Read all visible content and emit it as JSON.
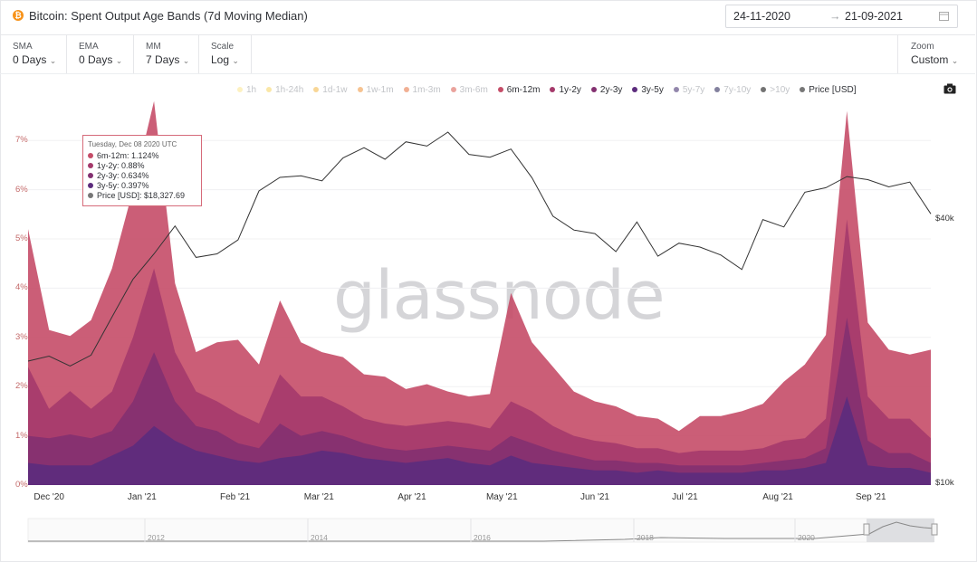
{
  "header": {
    "title": "Bitcoin: Spent Output Age Bands (7d Moving Median)",
    "coin_symbol": "₿",
    "date_from": "24-11-2020",
    "date_to": "21-09-2021",
    "arrow": "→"
  },
  "controls": [
    {
      "label": "SMA",
      "value": "0 Days"
    },
    {
      "label": "EMA",
      "value": "0 Days"
    },
    {
      "label": "MM",
      "value": "7 Days"
    },
    {
      "label": "Scale",
      "value": "Log"
    }
  ],
  "zoom": {
    "label": "Zoom",
    "value": "Custom"
  },
  "legend": [
    {
      "name": "1h",
      "color": "#fbe58c",
      "active": false
    },
    {
      "name": "1h-24h",
      "color": "#f6d35e",
      "active": false
    },
    {
      "name": "1d-1w",
      "color": "#f3b43f",
      "active": false
    },
    {
      "name": "1w-1m",
      "color": "#ee9236",
      "active": false
    },
    {
      "name": "1m-3m",
      "color": "#e6703d",
      "active": false
    },
    {
      "name": "3m-6m",
      "color": "#d9584c",
      "active": false
    },
    {
      "name": "6m-12m",
      "color": "#c54d68",
      "active": true
    },
    {
      "name": "1y-2y",
      "color": "#a53a6b",
      "active": true
    },
    {
      "name": "2y-3y",
      "color": "#833070",
      "active": true
    },
    {
      "name": "3y-5y",
      "color": "#5c2c7d",
      "active": true
    },
    {
      "name": "5y-7y",
      "color": "#3a2468",
      "active": false
    },
    {
      "name": "7y-10y",
      "color": "#1e1a4f",
      "active": false
    },
    {
      "name": ">10y",
      "color": "#000000",
      "active": false
    },
    {
      "name": "Price [USD]",
      "color": "#777777",
      "active": true
    }
  ],
  "tooltip": {
    "date": "Tuesday, Dec 08 2020 UTC",
    "rows": [
      {
        "label": "6m-12m",
        "value": "1.124%",
        "color": "#c54d68"
      },
      {
        "label": "1y-2y",
        "value": "0.88%",
        "color": "#a53a6b"
      },
      {
        "label": "2y-3y",
        "value": "0.634%",
        "color": "#833070"
      },
      {
        "label": "3y-5y",
        "value": "0.397%",
        "color": "#5c2c7d"
      },
      {
        "label": "Price [USD]",
        "value": "$18,327.69",
        "color": "#777777"
      }
    ]
  },
  "watermark": "glassnode",
  "navigator": {
    "years": [
      "2012",
      "2014",
      "2016",
      "2018",
      "2020"
    ]
  },
  "chart_data": {
    "type": "area",
    "title": "Bitcoin: Spent Output Age Bands (7d Moving Median)",
    "stacked": true,
    "x": [
      "2020-11-24",
      "2020-12-01",
      "2020-12-08",
      "2020-12-15",
      "2020-12-22",
      "2020-12-29",
      "2021-01-05",
      "2021-01-12",
      "2021-01-19",
      "2021-01-26",
      "2021-02-02",
      "2021-02-09",
      "2021-02-16",
      "2021-02-23",
      "2021-03-02",
      "2021-03-09",
      "2021-03-16",
      "2021-03-23",
      "2021-03-30",
      "2021-04-06",
      "2021-04-13",
      "2021-04-20",
      "2021-04-27",
      "2021-05-04",
      "2021-05-11",
      "2021-05-18",
      "2021-05-25",
      "2021-06-01",
      "2021-06-08",
      "2021-06-15",
      "2021-06-22",
      "2021-06-29",
      "2021-07-06",
      "2021-07-13",
      "2021-07-20",
      "2021-07-27",
      "2021-08-03",
      "2021-08-10",
      "2021-08-17",
      "2021-08-24",
      "2021-08-31",
      "2021-09-07",
      "2021-09-14",
      "2021-09-21"
    ],
    "series": [
      {
        "name": "3y-5y",
        "values": [
          0.45,
          0.4,
          0.4,
          0.4,
          0.6,
          0.8,
          1.2,
          0.9,
          0.7,
          0.6,
          0.5,
          0.45,
          0.55,
          0.6,
          0.7,
          0.65,
          0.55,
          0.5,
          0.45,
          0.5,
          0.55,
          0.45,
          0.4,
          0.6,
          0.45,
          0.4,
          0.35,
          0.3,
          0.3,
          0.25,
          0.3,
          0.25,
          0.25,
          0.25,
          0.25,
          0.3,
          0.3,
          0.35,
          0.45,
          1.8,
          0.4,
          0.35,
          0.35,
          0.25
        ]
      },
      {
        "name": "2y-3y",
        "values": [
          0.55,
          0.55,
          0.63,
          0.55,
          0.5,
          0.9,
          1.5,
          0.8,
          0.5,
          0.5,
          0.35,
          0.3,
          0.7,
          0.4,
          0.4,
          0.35,
          0.3,
          0.25,
          0.25,
          0.25,
          0.25,
          0.3,
          0.3,
          0.4,
          0.4,
          0.3,
          0.25,
          0.2,
          0.2,
          0.2,
          0.15,
          0.15,
          0.15,
          0.15,
          0.15,
          0.15,
          0.2,
          0.2,
          0.3,
          1.6,
          0.5,
          0.3,
          0.3,
          0.2
        ]
      },
      {
        "name": "1y-2y",
        "values": [
          1.4,
          0.6,
          0.88,
          0.6,
          0.8,
          1.3,
          1.7,
          1.0,
          0.7,
          0.6,
          0.6,
          0.5,
          1.0,
          0.8,
          0.7,
          0.6,
          0.5,
          0.5,
          0.5,
          0.5,
          0.5,
          0.5,
          0.45,
          0.7,
          0.65,
          0.5,
          0.4,
          0.4,
          0.35,
          0.3,
          0.3,
          0.25,
          0.3,
          0.3,
          0.3,
          0.3,
          0.4,
          0.4,
          0.6,
          2.0,
          0.9,
          0.7,
          0.7,
          0.5
        ]
      },
      {
        "name": "6m-12m",
        "values": [
          2.8,
          1.6,
          1.12,
          1.8,
          2.5,
          3.0,
          3.4,
          1.4,
          0.8,
          1.2,
          1.5,
          1.2,
          1.5,
          1.1,
          0.9,
          1.0,
          0.9,
          0.95,
          0.75,
          0.8,
          0.6,
          0.55,
          0.7,
          2.2,
          1.4,
          1.2,
          0.9,
          0.8,
          0.75,
          0.65,
          0.6,
          0.45,
          0.7,
          0.7,
          0.8,
          0.9,
          1.2,
          1.5,
          1.7,
          2.2,
          1.5,
          1.4,
          1.3,
          1.8
        ]
      },
      {
        "name": "Price [USD]",
        "axis": "right",
        "values": [
          18800,
          19300,
          18327.69,
          19400,
          23700,
          28900,
          33000,
          38200,
          32400,
          33000,
          35500,
          45900,
          49300,
          49700,
          48400,
          54600,
          57600,
          54200,
          59400,
          58100,
          62500,
          55600,
          54800,
          57200,
          49200,
          40200,
          37400,
          36700,
          33400,
          39000,
          32600,
          34900,
          34200,
          32800,
          30400,
          39500,
          38000,
          45600,
          46700,
          49500,
          48700,
          46900,
          48100,
          40700
        ]
      }
    ],
    "y_left": {
      "ticks": [
        "0%",
        "1%",
        "2%",
        "3%",
        "4%",
        "5%",
        "6%",
        "7%"
      ],
      "range": [
        0,
        7.7
      ]
    },
    "y_right": {
      "labels": [
        "$10k",
        "$40k"
      ],
      "scale": "log"
    },
    "x_ticks": [
      "Dec '20",
      "Jan '21",
      "Feb '21",
      "Mar '21",
      "Apr '21",
      "May '21",
      "Jun '21",
      "Jul '21",
      "Aug '21",
      "Sep '21"
    ],
    "legend_position": "top-right"
  }
}
